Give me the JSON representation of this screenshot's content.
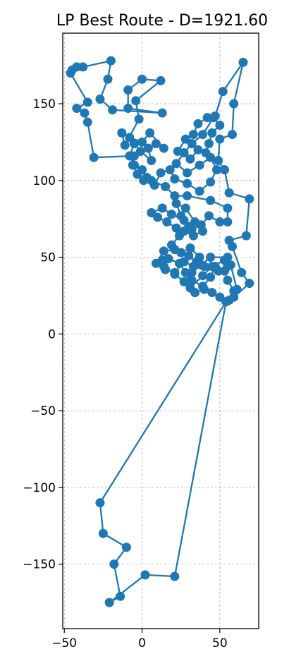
{
  "chart_data": {
    "type": "line",
    "title": "LP Best Route - D=1921.60",
    "xlabel": "",
    "ylabel": "",
    "xlim": [
      -51,
      75
    ],
    "ylim": [
      -192,
      196
    ],
    "xticks": [
      -50,
      0,
      50
    ],
    "yticks": [
      -150,
      -100,
      -50,
      0,
      50,
      100,
      150
    ],
    "xtick_labels": [
      "−50",
      "0",
      "50"
    ],
    "ytick_labels": [
      "−150",
      "−100",
      "−50",
      "0",
      "50",
      "100",
      "150"
    ],
    "grid": true,
    "series_color": "#1f77b4",
    "markers": true,
    "points": [
      [
        59,
        24
      ],
      [
        69,
        33
      ],
      [
        64,
        40
      ],
      [
        58,
        57
      ],
      [
        56,
        61
      ],
      [
        67,
        64
      ],
      [
        69,
        88
      ],
      [
        56,
        92
      ],
      [
        53,
        107
      ],
      [
        49,
        113
      ],
      [
        50,
        127
      ],
      [
        58,
        130
      ],
      [
        59,
        150
      ],
      [
        65,
        177
      ],
      [
        52,
        158
      ],
      [
        47,
        142
      ],
      [
        42,
        141
      ],
      [
        36,
        137
      ],
      [
        33,
        130
      ],
      [
        28,
        127
      ],
      [
        23,
        119
      ],
      [
        31,
        114
      ],
      [
        36,
        120
      ],
      [
        41,
        118
      ],
      [
        43,
        124
      ],
      [
        45,
        131
      ],
      [
        50,
        136
      ],
      [
        46,
        141
      ],
      [
        39,
        130
      ],
      [
        32,
        124
      ],
      [
        27,
        118
      ],
      [
        22,
        111
      ],
      [
        29,
        105
      ],
      [
        37,
        110
      ],
      [
        44,
        115
      ],
      [
        48,
        107
      ],
      [
        44,
        99
      ],
      [
        37,
        93
      ],
      [
        29,
        98
      ],
      [
        21,
        101
      ],
      [
        18,
        107
      ],
      [
        12,
        105
      ],
      [
        8,
        97
      ],
      [
        3,
        102
      ],
      [
        0,
        107
      ],
      [
        -5,
        110
      ],
      [
        -8,
        116
      ],
      [
        -5,
        124
      ],
      [
        -1,
        119
      ],
      [
        6,
        113
      ],
      [
        4,
        121
      ],
      [
        9,
        124
      ],
      [
        14,
        121
      ],
      [
        5,
        131
      ],
      [
        0,
        125
      ],
      [
        -8,
        128
      ],
      [
        -13,
        131
      ],
      [
        -11,
        123
      ],
      [
        -2,
        140
      ],
      [
        -4,
        152
      ],
      [
        12,
        165
      ],
      [
        0,
        166
      ],
      [
        -9,
        159
      ],
      [
        -9,
        147
      ],
      [
        13,
        144
      ],
      [
        -19,
        146
      ],
      [
        -27,
        153
      ],
      [
        -22,
        166
      ],
      [
        -20,
        178
      ],
      [
        -38,
        174
      ],
      [
        -42,
        174
      ],
      [
        -45,
        172
      ],
      [
        -46,
        170
      ],
      [
        -35,
        151
      ],
      [
        -42,
        147
      ],
      [
        -37,
        144
      ],
      [
        -35,
        138
      ],
      [
        -31,
        115
      ],
      [
        -5,
        116
      ],
      [
        -6,
        110
      ],
      [
        -3,
        104
      ],
      [
        1,
        100
      ],
      [
        6,
        100
      ],
      [
        15,
        96
      ],
      [
        21,
        90
      ],
      [
        29,
        90
      ],
      [
        44,
        87
      ],
      [
        55,
        82
      ],
      [
        55,
        73
      ],
      [
        50,
        73
      ],
      [
        43,
        77
      ],
      [
        38,
        71
      ],
      [
        32,
        68
      ],
      [
        27,
        74
      ],
      [
        19,
        78
      ],
      [
        13,
        82
      ],
      [
        6,
        79
      ],
      [
        10,
        76
      ],
      [
        16,
        73
      ],
      [
        22,
        69
      ],
      [
        27,
        67
      ],
      [
        33,
        64
      ],
      [
        39,
        67
      ],
      [
        34,
        73
      ],
      [
        28,
        82
      ],
      [
        22,
        85
      ],
      [
        25,
        77
      ],
      [
        30,
        70
      ],
      [
        24,
        64
      ],
      [
        19,
        58
      ],
      [
        25,
        53
      ],
      [
        31,
        56
      ],
      [
        37,
        50
      ],
      [
        33,
        44
      ],
      [
        27,
        47
      ],
      [
        21,
        40
      ],
      [
        15,
        42
      ],
      [
        13,
        48
      ],
      [
        17,
        49
      ],
      [
        24,
        46
      ],
      [
        28,
        40
      ],
      [
        32,
        35
      ],
      [
        39,
        31
      ],
      [
        44,
        37
      ],
      [
        47,
        44
      ],
      [
        53,
        41
      ],
      [
        55,
        35
      ],
      [
        59,
        28
      ],
      [
        56,
        22
      ],
      [
        50,
        24
      ],
      [
        45,
        27
      ],
      [
        40,
        29
      ],
      [
        34,
        27
      ],
      [
        31,
        30
      ],
      [
        39,
        38
      ],
      [
        45,
        44
      ],
      [
        53,
        48
      ],
      [
        55,
        44
      ],
      [
        49,
        41
      ],
      [
        40,
        44
      ],
      [
        35,
        47
      ],
      [
        30,
        51
      ],
      [
        21,
        55
      ],
      [
        14,
        54
      ],
      [
        9,
        46
      ],
      [
        14,
        44
      ],
      [
        21,
        39
      ],
      [
        27,
        34
      ],
      [
        32,
        40
      ],
      [
        38,
        45
      ],
      [
        44,
        50
      ],
      [
        55,
        50
      ],
      [
        57,
        45
      ],
      [
        61,
        29
      ],
      [
        54,
        21
      ],
      [
        -27,
        -110
      ],
      [
        -25,
        -130
      ],
      [
        -10,
        -139
      ],
      [
        -18,
        -150
      ],
      [
        -14,
        -171
      ],
      [
        -21,
        -175
      ],
      [
        2,
        -157
      ],
      [
        21,
        -158
      ],
      [
        54,
        21
      ]
    ]
  }
}
